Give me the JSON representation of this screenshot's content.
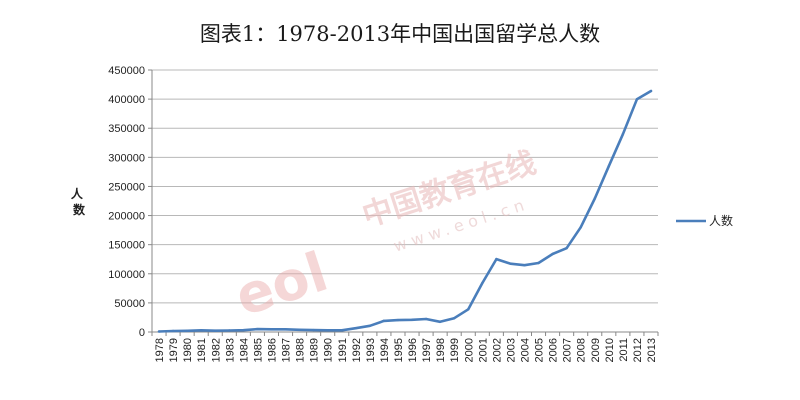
{
  "chart_data": {
    "type": "line",
    "title": "图表1：1978-2013年中国出国留学总人数",
    "ylabel": "人数",
    "ylim": [
      0,
      450000
    ],
    "ytick_labels": [
      "0",
      "50000",
      "100000",
      "150000",
      "200000",
      "250000",
      "300000",
      "350000",
      "400000",
      "450000"
    ],
    "x": [
      "1978",
      "1979",
      "1980",
      "1981",
      "1982",
      "1983",
      "1984",
      "1985",
      "1986",
      "1987",
      "1988",
      "1989",
      "1990",
      "1991",
      "1992",
      "1993",
      "1994",
      "1995",
      "1996",
      "1997",
      "1998",
      "1999",
      "2000",
      "2001",
      "2002",
      "2003",
      "2004",
      "2005",
      "2006",
      "2007",
      "2008",
      "2009",
      "2010",
      "2011",
      "2012",
      "2013"
    ],
    "series": [
      {
        "name": "人数",
        "color": "#4a7ebb",
        "values": [
          860,
          1800,
          2100,
          2900,
          2300,
          2600,
          3100,
          4900,
          4700,
          4700,
          3800,
          3300,
          2900,
          2900,
          6500,
          10700,
          19100,
          20400,
          20900,
          22400,
          17600,
          23700,
          39000,
          84000,
          125200,
          117300,
          114700,
          118500,
          134000,
          144000,
          179800,
          229300,
          284700,
          339700,
          399600,
          413900
        ]
      }
    ],
    "grid": true,
    "legend": "right"
  },
  "watermark": {
    "logo": "eol",
    "name": "中国教育在线",
    "url": "www.eol.cn"
  }
}
